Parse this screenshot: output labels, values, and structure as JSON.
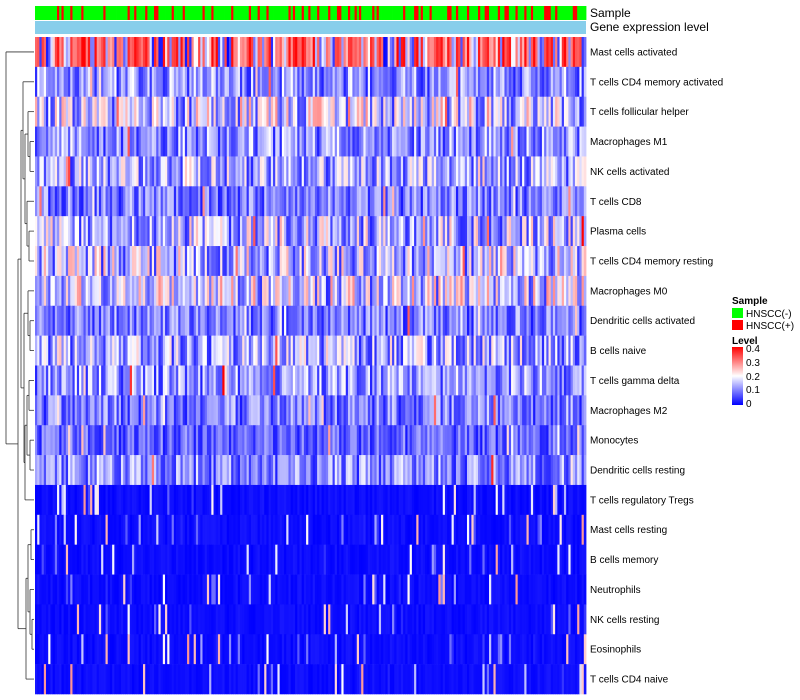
{
  "chart_data": {
    "type": "heatmap",
    "title": "",
    "annotation_tracks": [
      "Sample",
      "Gene expression level"
    ],
    "rows": [
      "Mast cells activated",
      "T cells CD4 memory activated",
      "T cells follicular helper",
      "Macrophages M1",
      "NK cells activated",
      "T cells CD8",
      "Plasma cells",
      "T cells CD4 memory resting",
      "Macrophages M0",
      "Dendritic cells activated",
      "B cells naive",
      "T cells gamma delta",
      "Macrophages M2",
      "Monocytes",
      "Dendritic cells resting",
      "T cells regulatory  Tregs",
      "Mast cells resting",
      "B cells memory",
      "Neutrophils",
      "NK cells resting",
      "Eosinophils",
      "T cells CD4 naive"
    ],
    "row_mean_level": [
      0.33,
      0.12,
      0.17,
      0.12,
      0.14,
      0.1,
      0.15,
      0.16,
      0.17,
      0.1,
      0.14,
      0.12,
      0.1,
      0.08,
      0.11,
      0.04,
      0.03,
      0.03,
      0.03,
      0.02,
      0.02,
      0.03
    ],
    "n_samples": 250,
    "sample_group_counts": {
      "HNSCC(-)": 195,
      "HNSCC(+)": 55
    },
    "legend": {
      "sample": {
        "title": "Sample",
        "items": [
          {
            "label": "HNSCC(-)",
            "color": "#00ff00"
          },
          {
            "label": "HNSCC(+)",
            "color": "#ff0000"
          }
        ]
      },
      "level": {
        "title": "Level",
        "ticks": [
          "0.4",
          "0.3",
          "0.2",
          "0.1",
          "0"
        ],
        "tick_values": [
          0.4,
          0.3,
          0.2,
          0.1,
          0
        ],
        "range": [
          0,
          0.42
        ],
        "colors": [
          "#0000ff",
          "#ffffff",
          "#ff0000"
        ]
      }
    },
    "colors": {
      "annotation_level_bar": "#87ceeb",
      "low": "#0000ff",
      "mid": "#ffffff",
      "high": "#ff0000"
    }
  }
}
